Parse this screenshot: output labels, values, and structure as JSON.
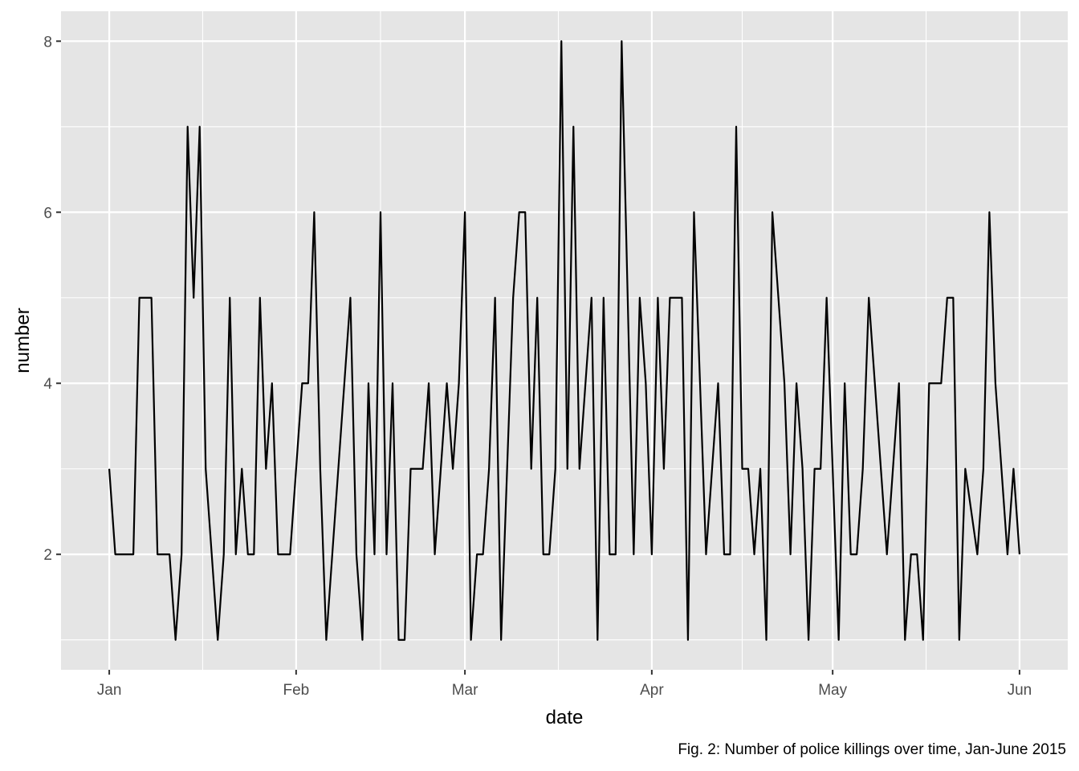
{
  "chart_data": {
    "type": "line",
    "xlabel": "date",
    "ylabel": "number",
    "caption": "Fig. 2: Number of police killings over time, Jan-June 2015",
    "x_ticks": [
      {
        "date": "2015-01-01",
        "label": "Jan"
      },
      {
        "date": "2015-02-01",
        "label": "Feb"
      },
      {
        "date": "2015-03-01",
        "label": "Mar"
      },
      {
        "date": "2015-04-01",
        "label": "Apr"
      },
      {
        "date": "2015-05-01",
        "label": "May"
      },
      {
        "date": "2015-06-01",
        "label": "Jun"
      }
    ],
    "y_ticks": [
      2,
      4,
      6,
      8
    ],
    "xlim": [
      "2014-12-24",
      "2015-06-09"
    ],
    "ylim": [
      0.65,
      8.35
    ],
    "grid": true,
    "background": "#e5e5e5",
    "grid_color": "#ffffff",
    "line_color": "#000000",
    "series": [
      {
        "x": [
          "2015-01-01",
          "2015-01-02",
          "2015-01-03",
          "2015-01-04",
          "2015-01-05",
          "2015-01-06",
          "2015-01-07",
          "2015-01-08",
          "2015-01-09",
          "2015-01-10",
          "2015-01-11",
          "2015-01-12",
          "2015-01-13",
          "2015-01-14",
          "2015-01-15",
          "2015-01-16",
          "2015-01-17",
          "2015-01-18",
          "2015-01-19",
          "2015-01-20",
          "2015-01-21",
          "2015-01-22",
          "2015-01-23",
          "2015-01-24",
          "2015-01-25",
          "2015-01-26",
          "2015-01-27",
          "2015-01-28",
          "2015-01-29",
          "2015-01-30",
          "2015-01-31",
          "2015-02-01",
          "2015-02-02",
          "2015-02-03",
          "2015-02-04",
          "2015-02-05",
          "2015-02-06",
          "2015-02-07",
          "2015-02-08",
          "2015-02-09",
          "2015-02-10",
          "2015-02-11",
          "2015-02-12",
          "2015-02-13",
          "2015-02-14",
          "2015-02-15",
          "2015-02-16",
          "2015-02-17",
          "2015-02-18",
          "2015-02-19",
          "2015-02-20",
          "2015-02-21",
          "2015-02-22",
          "2015-02-23",
          "2015-02-24",
          "2015-02-25",
          "2015-02-26",
          "2015-02-27",
          "2015-02-28",
          "2015-03-01",
          "2015-03-02",
          "2015-03-03",
          "2015-03-04",
          "2015-03-05",
          "2015-03-06",
          "2015-03-07",
          "2015-03-08",
          "2015-03-09",
          "2015-03-10",
          "2015-03-11",
          "2015-03-12",
          "2015-03-13",
          "2015-03-14",
          "2015-03-15",
          "2015-03-16",
          "2015-03-17",
          "2015-03-18",
          "2015-03-19",
          "2015-03-20",
          "2015-03-21",
          "2015-03-22",
          "2015-03-23",
          "2015-03-24",
          "2015-03-25",
          "2015-03-26",
          "2015-03-27",
          "2015-03-28",
          "2015-03-29",
          "2015-03-30",
          "2015-03-31",
          "2015-04-01",
          "2015-04-02",
          "2015-04-03",
          "2015-04-04",
          "2015-04-05",
          "2015-04-06",
          "2015-04-07",
          "2015-04-08",
          "2015-04-09",
          "2015-04-10",
          "2015-04-11",
          "2015-04-12",
          "2015-04-13",
          "2015-04-14",
          "2015-04-15",
          "2015-04-16",
          "2015-04-17",
          "2015-04-18",
          "2015-04-19",
          "2015-04-20",
          "2015-04-21",
          "2015-04-22",
          "2015-04-23",
          "2015-04-24",
          "2015-04-25",
          "2015-04-26",
          "2015-04-27",
          "2015-04-28",
          "2015-04-29",
          "2015-04-30",
          "2015-05-01",
          "2015-05-02",
          "2015-05-03",
          "2015-05-04",
          "2015-05-05",
          "2015-05-06",
          "2015-05-07",
          "2015-05-08",
          "2015-05-09",
          "2015-05-10",
          "2015-05-11",
          "2015-05-12",
          "2015-05-13",
          "2015-05-14",
          "2015-05-15",
          "2015-05-16",
          "2015-05-17",
          "2015-05-18",
          "2015-05-19",
          "2015-05-20",
          "2015-05-21",
          "2015-05-22",
          "2015-05-23",
          "2015-05-24",
          "2015-05-25",
          "2015-05-26",
          "2015-05-27",
          "2015-05-28",
          "2015-05-29",
          "2015-05-30",
          "2015-05-31",
          "2015-06-01"
        ],
        "y": [
          3,
          2,
          2,
          2,
          2,
          5,
          5,
          5,
          2,
          2,
          2,
          1,
          2,
          7,
          5,
          7,
          3,
          2,
          1,
          2,
          5,
          2,
          3,
          2,
          2,
          5,
          3,
          4,
          2,
          2,
          2,
          3,
          4,
          4,
          6,
          3,
          1,
          2,
          3,
          4,
          5,
          2,
          1,
          4,
          2,
          6,
          2,
          4,
          1,
          1,
          3,
          3,
          3,
          4,
          2,
          3,
          4,
          3,
          4,
          6,
          1,
          2,
          2,
          3,
          5,
          1,
          3,
          5,
          6,
          6,
          3,
          5,
          2,
          2,
          3,
          8,
          3,
          7,
          3,
          4,
          5,
          1,
          5,
          2,
          2,
          8,
          5,
          2,
          5,
          4,
          2,
          5,
          3,
          5,
          5,
          5,
          1,
          6,
          4,
          2,
          3,
          4,
          2,
          2,
          7,
          3,
          3,
          2,
          3,
          1,
          6,
          5,
          4,
          2,
          4,
          3,
          1,
          3,
          3,
          5,
          3,
          1,
          4,
          2,
          2,
          3,
          5,
          4,
          3,
          2,
          3,
          4,
          1,
          2,
          2,
          1,
          4,
          4,
          4,
          5,
          5,
          1,
          3,
          2.5,
          2,
          3,
          6,
          4,
          3,
          2,
          3,
          2
        ]
      }
    ]
  }
}
